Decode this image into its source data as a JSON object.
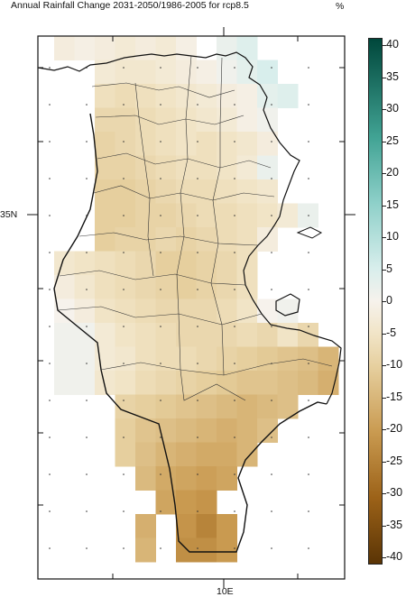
{
  "title": "Annual Rainfall Change 2031-2050/1986-2005 for rcp8.5",
  "unit": "%",
  "axes": {
    "lat_label": "35N",
    "lon_label": "10E"
  },
  "colorbar": {
    "min": -40,
    "max": 40,
    "ticks": [
      "40",
      "35",
      "30",
      "25",
      "20",
      "15",
      "10",
      "5",
      "0",
      "-5",
      "-10",
      "-15",
      "-20",
      "-25",
      "-30",
      "-35",
      "-40"
    ],
    "stops": [
      {
        "value": -40,
        "color": "#5a3405"
      },
      {
        "value": -30,
        "color": "#9c6218"
      },
      {
        "value": -20,
        "color": "#c99a50"
      },
      {
        "value": -10,
        "color": "#e6cf9e"
      },
      {
        "value": -5,
        "color": "#f1e4c6"
      },
      {
        "value": 0,
        "color": "#f6f2ec"
      },
      {
        "value": 5,
        "color": "#d8eeec"
      },
      {
        "value": 15,
        "color": "#8ed0c9"
      },
      {
        "value": 25,
        "color": "#41a394"
      },
      {
        "value": 40,
        "color": "#00473b"
      }
    ]
  },
  "chart_data": {
    "type": "heatmap",
    "title": "Annual Rainfall Change 2031-2050/1986-2005 for rcp8.5",
    "unit": "%",
    "vmin": -40,
    "vmax": 40,
    "cell_size_deg": 0.22,
    "lon_origin": 7.2,
    "lat_origin": 37.7,
    "cells": [
      [
        -2,
        -1,
        -2,
        -3,
        -2,
        -3,
        -1,
        null,
        2,
        4,
        null,
        null,
        null,
        null
      ],
      [
        null,
        null,
        -3,
        -4,
        -4,
        -3,
        -2,
        -1,
        1,
        3,
        5,
        null,
        null,
        null
      ],
      [
        null,
        null,
        -6,
        -7,
        -6,
        -5,
        -4,
        -3,
        -2,
        -1,
        3,
        4,
        null,
        null
      ],
      [
        null,
        null,
        -8,
        -8,
        -7,
        -6,
        -5,
        -4,
        -3,
        -1,
        1,
        null,
        null,
        null
      ],
      [
        null,
        null,
        -9,
        -8,
        -7,
        -6,
        -5,
        -6,
        -5,
        -4,
        -2,
        null,
        null,
        null
      ],
      [
        null,
        null,
        -9,
        -9,
        -8,
        -7,
        -6,
        -6,
        -5,
        -3,
        2,
        null,
        null,
        null
      ],
      [
        null,
        null,
        -10,
        -10,
        -9,
        -8,
        -7,
        -7,
        -6,
        -5,
        -4,
        null,
        null,
        null
      ],
      [
        null,
        null,
        -10,
        -10,
        -9,
        -9,
        -8,
        -7,
        -7,
        -6,
        -5,
        -3,
        2,
        null
      ],
      [
        null,
        null,
        -10,
        -9,
        -9,
        -8,
        -9,
        -8,
        -7,
        -6,
        -2,
        null,
        null,
        null
      ],
      [
        -4,
        -5,
        -6,
        -7,
        -8,
        -10,
        -10,
        -9,
        -8,
        -6,
        null,
        null,
        null,
        null
      ],
      [
        -2,
        -4,
        -6,
        -7,
        -8,
        -9,
        -10,
        -9,
        -8,
        -6,
        null,
        null,
        null,
        null
      ],
      [
        0,
        -2,
        -5,
        -6,
        -7,
        -8,
        -8,
        -8,
        -7,
        -5,
        0,
        1,
        null,
        null
      ],
      [
        1,
        1,
        -3,
        -5,
        -6,
        -7,
        -8,
        -8,
        -8,
        -7,
        -8,
        -5,
        -8,
        null
      ],
      [
        1,
        1,
        -3,
        -4,
        -6,
        -7,
        -7,
        -8,
        -9,
        -10,
        -11,
        -12,
        -13,
        -15
      ],
      [
        1,
        1,
        -4,
        -5,
        -7,
        -8,
        -9,
        -10,
        -11,
        -12,
        -12,
        -13,
        -14,
        -16
      ],
      [
        null,
        null,
        null,
        -9,
        -10,
        -11,
        -12,
        -13,
        -14,
        -15,
        -14,
        -13,
        null,
        null
      ],
      [
        null,
        null,
        null,
        -10,
        -12,
        -13,
        -14,
        -15,
        -16,
        -15,
        -13,
        null,
        null,
        null
      ],
      [
        null,
        null,
        null,
        -10,
        -13,
        -15,
        -16,
        -17,
        -17,
        -15,
        null,
        null,
        null,
        null
      ],
      [
        null,
        null,
        null,
        null,
        -14,
        -17,
        -18,
        -19,
        -18,
        null,
        null,
        null,
        null,
        null
      ],
      [
        null,
        null,
        null,
        null,
        null,
        -18,
        -20,
        -21,
        null,
        null,
        null,
        null,
        null,
        null
      ],
      [
        null,
        null,
        null,
        null,
        -16,
        null,
        -21,
        -24,
        -20,
        null,
        null,
        null,
        null,
        null
      ],
      [
        null,
        null,
        null,
        null,
        -15,
        null,
        -22,
        -22,
        -20,
        null,
        null,
        null,
        null,
        null
      ]
    ]
  }
}
